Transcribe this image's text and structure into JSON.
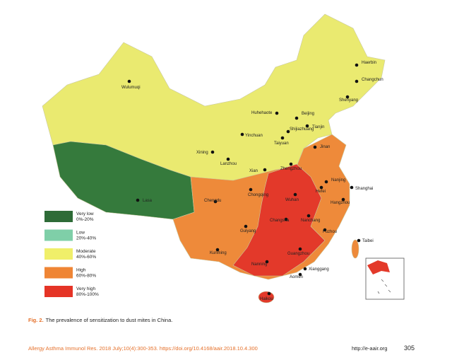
{
  "cities": [
    "Haerbin",
    "Changchun",
    "Shenyang",
    "Wulumuqi",
    "Huhehaote",
    "Beijing",
    "Tianjin",
    "Shijiazhuang",
    "Yinchuan",
    "Taiyuan",
    "Jinan",
    "Xining",
    "Lanzhou",
    "Xian",
    "Zhengzhou",
    "Nanjing",
    "Shanghai",
    "Hefei",
    "Hangzhou",
    "Wuhan",
    "Lasa",
    "Chengdu",
    "Chongqing",
    "Changsha",
    "Nanchang",
    "Fuzhou",
    "Taibei",
    "Guiyang",
    "Kunming",
    "Guangzhou",
    "Nanning",
    "Xianggang",
    "Aomen",
    "Haikou"
  ],
  "legend": [
    {
      "label": "Very low",
      "range": "0%-20%"
    },
    {
      "label": "Low",
      "range": "20%-40%"
    },
    {
      "label": "Moderate",
      "range": "40%-60%"
    },
    {
      "label": "High",
      "range": "60%-80%"
    },
    {
      "label": "Very high",
      "range": "80%-100%"
    }
  ],
  "caption": {
    "figure": "Fig. 2.",
    "text": "The prevalence of sensitization to dust mites in China."
  },
  "footer": {
    "citation": "Allergy Asthma Immunol Res. 2018 July;10(4):300-353.  https://doi.org/10.4168/aair.2018.10.4.300",
    "url": "http://e-aair.org",
    "page": "305"
  }
}
